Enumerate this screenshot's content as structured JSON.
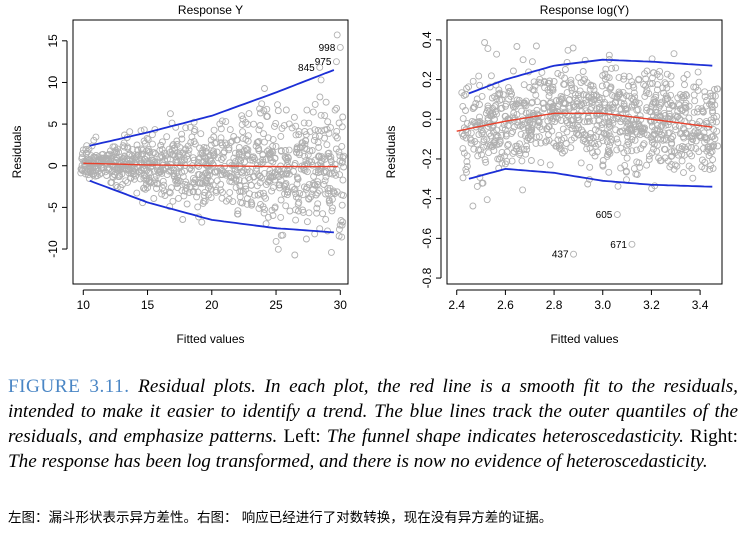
{
  "figure": {
    "label": "FIGURE 3.11.",
    "caption_part1": "Residual plots. In each plot, the red line is a smooth fit to the residuals, intended to make it easier to identify a trend. The blue lines track the outer quantiles of the residuals, and emphasize patterns. Left:",
    "caption_part2": "The funnel shape indicates heteroscedasticity. Right:",
    "caption_part3": "The response has been log transformed, and there is now no evidence of heteroscedasticity.",
    "caption_upright_1": "Left:",
    "caption_upright_2": "Right:",
    "chinese_note": "左图：漏斗形状表示异方差性。右图： 响应已经进行了对数转换，现在没有异方差的证据。"
  },
  "colors": {
    "points": "#b0b0b0",
    "smooth": "#e8412c",
    "quantile": "#1c2fd6",
    "axis": "#000000",
    "caption_label": "#4a86c5"
  },
  "chart_data": [
    {
      "type": "scatter",
      "title": "Response Y",
      "xlabel": "Fitted values",
      "ylabel": "Residuals",
      "xlim": [
        9.2,
        30.6
      ],
      "ylim": [
        -14.2,
        17.5
      ],
      "xticks": [
        10,
        15,
        20,
        25,
        30
      ],
      "yticks": [
        -10,
        -5,
        0,
        5,
        10,
        15
      ],
      "grid": false,
      "n_points": 1000,
      "residual_sd_model": "sd grows linearly from about 1.0 at x=10 to about 5.0 at x=30",
      "smooth_fit": {
        "name": "red smooth fit",
        "x": [
          10,
          15,
          20,
          25,
          29.8
        ],
        "y": [
          0.3,
          0.1,
          0.0,
          -0.1,
          -0.1
        ]
      },
      "upper_quantile": {
        "name": "blue upper quantile",
        "x": [
          10.5,
          15,
          20,
          25,
          29.5
        ],
        "y": [
          2.4,
          4.0,
          6.0,
          8.8,
          11.5
        ]
      },
      "lower_quantile": {
        "name": "blue lower quantile",
        "x": [
          10.5,
          15,
          20,
          25,
          29.5
        ],
        "y": [
          -1.8,
          -4.4,
          -6.5,
          -7.5,
          -8.0
        ]
      },
      "labeled_points": [
        {
          "label": "998",
          "x": 30.0,
          "y": 14.2
        },
        {
          "label": "975",
          "x": 29.7,
          "y": 12.5
        },
        {
          "label": "845",
          "x": 28.4,
          "y": 11.8
        }
      ]
    },
    {
      "type": "scatter",
      "title": "Response log(Y)",
      "xlabel": "Fitted values",
      "ylabel": "Residuals",
      "xlim": [
        2.36,
        3.49
      ],
      "ylim": [
        -0.83,
        0.5
      ],
      "xticks": [
        2.4,
        2.6,
        2.8,
        3.0,
        3.2,
        3.4
      ],
      "yticks": [
        -0.8,
        -0.6,
        -0.4,
        -0.2,
        0.0,
        0.2,
        0.4
      ],
      "grid": false,
      "n_points": 1000,
      "residual_sd_model": "roughly constant sd about 0.15",
      "smooth_fit": {
        "name": "red smooth fit",
        "x": [
          2.4,
          2.6,
          2.8,
          3.0,
          3.2,
          3.45
        ],
        "y": [
          -0.06,
          -0.01,
          0.03,
          0.03,
          0.0,
          -0.04
        ]
      },
      "upper_quantile": {
        "name": "blue upper quantile",
        "x": [
          2.45,
          2.6,
          2.8,
          3.0,
          3.2,
          3.45
        ],
        "y": [
          0.13,
          0.2,
          0.27,
          0.3,
          0.29,
          0.27
        ]
      },
      "lower_quantile": {
        "name": "blue lower quantile",
        "x": [
          2.45,
          2.6,
          2.8,
          3.0,
          3.2,
          3.45
        ],
        "y": [
          -0.3,
          -0.25,
          -0.27,
          -0.31,
          -0.33,
          -0.34
        ]
      },
      "labeled_points": [
        {
          "label": "605",
          "x": 3.06,
          "y": -0.48
        },
        {
          "label": "671",
          "x": 3.12,
          "y": -0.63
        },
        {
          "label": "437",
          "x": 2.88,
          "y": -0.68
        }
      ]
    }
  ]
}
